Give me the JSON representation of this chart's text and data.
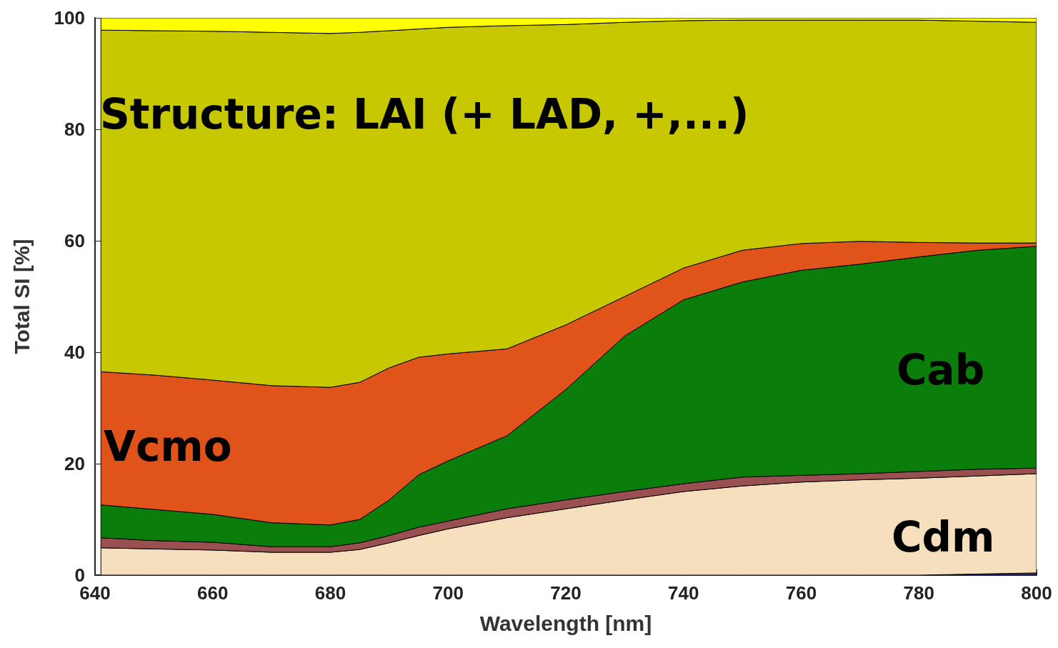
{
  "chart_data": {
    "type": "area",
    "stacked": true,
    "xlabel": "Wavelength [nm]",
    "ylabel": "Total SI [%]",
    "x": [
      641,
      650,
      660,
      670,
      680,
      685,
      690,
      695,
      700,
      710,
      720,
      730,
      740,
      750,
      760,
      770,
      780,
      790,
      800
    ],
    "xlim": [
      640,
      800
    ],
    "xticks": [
      640,
      660,
      680,
      700,
      720,
      740,
      760,
      780,
      800
    ],
    "ylim": [
      0,
      100
    ],
    "yticks": [
      0,
      20,
      40,
      60,
      80,
      100
    ],
    "grid": false,
    "line_style": "solid",
    "series": [
      {
        "color": "#2b2b9a",
        "values": [
          0,
          0,
          0,
          0,
          0,
          0,
          0,
          0,
          0,
          0,
          0,
          0,
          0,
          0,
          0,
          0,
          0,
          0.2,
          0.4
        ]
      },
      {
        "color": "#f5dfbd",
        "values": [
          4.9,
          4.7,
          4.5,
          4.1,
          4.1,
          4.6,
          5.8,
          7.1,
          8.3,
          10.3,
          11.9,
          13.5,
          15.0,
          16.0,
          16.7,
          17.1,
          17.4,
          17.6,
          17.8
        ]
      },
      {
        "color": "#9a5050",
        "values": [
          1.8,
          1.5,
          1.4,
          1.0,
          1.0,
          1.2,
          1.3,
          1.5,
          1.4,
          1.6,
          1.6,
          1.5,
          1.4,
          1.6,
          1.2,
          1.1,
          1.2,
          1.2,
          1.0
        ]
      },
      {
        "color": "#0a7d0a",
        "values": [
          5.9,
          5.6,
          5.0,
          4.3,
          3.9,
          4.2,
          6.4,
          9.4,
          10.8,
          13.1,
          19.8,
          27.9,
          33.0,
          35.0,
          36.8,
          37.6,
          38.5,
          39.3,
          39.8
        ]
      },
      {
        "color": "#e0541c",
        "values": [
          23.9,
          24.1,
          24.1,
          24.6,
          24.7,
          24.6,
          23.7,
          21.1,
          19.2,
          15.6,
          11.6,
          7.1,
          5.7,
          5.7,
          4.8,
          4.1,
          2.6,
          1.3,
          0.6
        ]
      },
      {
        "color": "#c8c800",
        "values": [
          61.3,
          61.8,
          62.6,
          63.4,
          63.5,
          62.8,
          60.5,
          58.9,
          58.6,
          58.0,
          53.9,
          49.2,
          44.4,
          41.3,
          40.1,
          39.7,
          39.9,
          39.8,
          39.6
        ]
      },
      {
        "color": "#ffff00",
        "values": [
          2.2,
          2.3,
          2.4,
          2.6,
          2.8,
          2.6,
          2.3,
          2.0,
          1.7,
          1.4,
          1.2,
          0.8,
          0.5,
          0.4,
          0.4,
          0.4,
          0.4,
          0.6,
          0.8
        ]
      }
    ],
    "annotations": [
      "Structure: LAI (+ LAD, +,...)",
      "Vcmo",
      "Cab",
      "Cdm"
    ]
  }
}
